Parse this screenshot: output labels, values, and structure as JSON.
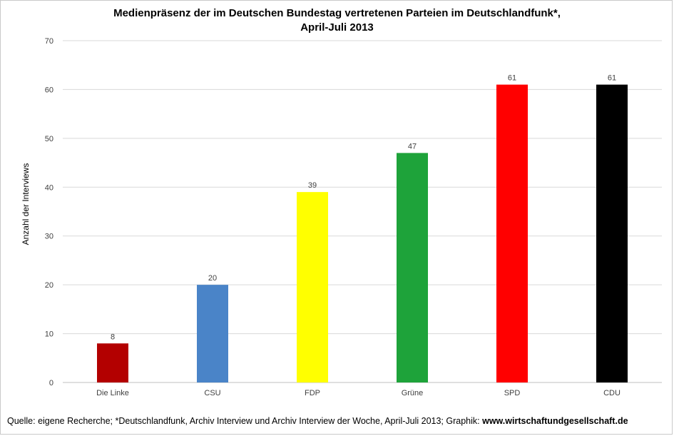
{
  "chart_data": {
    "type": "bar",
    "title_line1": "Medienpräsenz der im Deutschen Bundestag vertretenen Parteien im Deutschlandfunk*,",
    "title_line2": "April-Juli 2013",
    "xlabel": "",
    "ylabel": "Anzahl der Interviews",
    "ylim": [
      0,
      70
    ],
    "yticks": [
      0,
      10,
      20,
      30,
      40,
      50,
      60,
      70
    ],
    "grid": true,
    "legend": "none",
    "categories": [
      "Die Linke",
      "CSU",
      "FDP",
      "Grüne",
      "SPD",
      "CDU"
    ],
    "values": [
      8,
      20,
      39,
      47,
      61,
      61
    ],
    "colors": [
      "#b30000",
      "#4a84c8",
      "#ffff00",
      "#1ea33a",
      "#ff0000",
      "#000000"
    ],
    "data_labels": [
      "8",
      "20",
      "39",
      "47",
      "61",
      "61"
    ]
  },
  "footer": {
    "text": "Quelle: eigene Recherche; *Deutschlandfunk, Archiv Interview und Archiv Interview der Woche, April-Juli 2013; Graphik: ",
    "link": "www.wirtschaftundgesellschaft.de"
  }
}
